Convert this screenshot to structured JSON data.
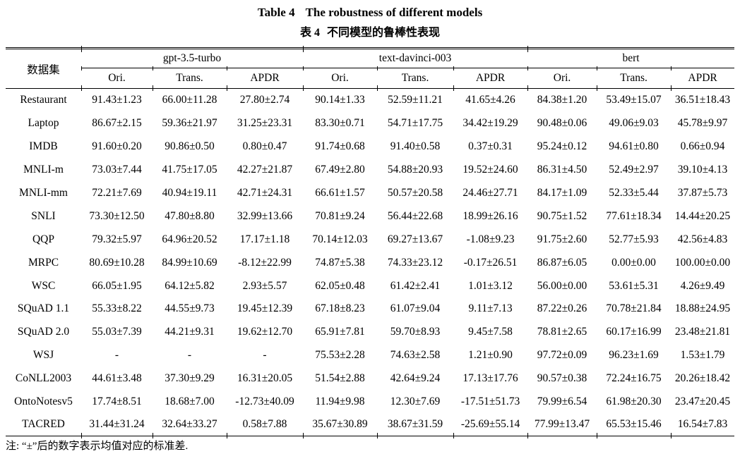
{
  "titles": {
    "en_label": "Table 4",
    "en_text": "The robustness of different models",
    "zh_label": "表 4",
    "zh_text": "不同模型的鲁棒性表现"
  },
  "colors": {
    "text": "#000000",
    "background": "#ffffff",
    "rule": "#000000"
  },
  "table": {
    "dataset_header": "数据集",
    "groups": [
      {
        "name": "gpt-3.5-turbo",
        "cols": [
          "Ori.",
          "Trans.",
          "APDR"
        ]
      },
      {
        "name": "text-davinci-003",
        "cols": [
          "Ori.",
          "Trans.",
          "APDR"
        ]
      },
      {
        "name": "bert",
        "cols": [
          "Ori.",
          "Trans.",
          "APDR"
        ]
      }
    ],
    "rows": [
      {
        "dataset": "Restaurant",
        "values": [
          "91.43±1.23",
          "66.00±11.28",
          "27.80±2.74",
          "90.14±1.33",
          "52.59±11.21",
          "41.65±4.26",
          "84.38±1.20",
          "53.49±15.07",
          "36.51±18.43"
        ]
      },
      {
        "dataset": "Laptop",
        "values": [
          "86.67±2.15",
          "59.36±21.97",
          "31.25±23.31",
          "83.30±0.71",
          "54.71±17.75",
          "34.42±19.29",
          "90.48±0.06",
          "49.06±9.03",
          "45.78±9.97"
        ]
      },
      {
        "dataset": "IMDB",
        "values": [
          "91.60±0.20",
          "90.86±0.50",
          "0.80±0.47",
          "91.74±0.68",
          "91.40±0.58",
          "0.37±0.31",
          "95.24±0.12",
          "94.61±0.80",
          "0.66±0.94"
        ]
      },
      {
        "dataset": "MNLI-m",
        "values": [
          "73.03±7.44",
          "41.75±17.05",
          "42.27±21.87",
          "67.49±2.80",
          "54.88±20.93",
          "19.52±24.60",
          "86.31±4.50",
          "52.49±2.97",
          "39.10±4.13"
        ]
      },
      {
        "dataset": "MNLI-mm",
        "values": [
          "72.21±7.69",
          "40.94±19.11",
          "42.71±24.31",
          "66.61±1.57",
          "50.57±20.58",
          "24.46±27.71",
          "84.17±1.09",
          "52.33±5.44",
          "37.87±5.73"
        ]
      },
      {
        "dataset": "SNLI",
        "values": [
          "73.30±12.50",
          "47.80±8.80",
          "32.99±13.66",
          "70.81±9.24",
          "56.44±22.68",
          "18.99±26.16",
          "90.75±1.52",
          "77.61±18.34",
          "14.44±20.25"
        ]
      },
      {
        "dataset": "QQP",
        "values": [
          "79.32±5.97",
          "64.96±20.52",
          "17.17±1.18",
          "70.14±12.03",
          "69.27±13.67",
          "-1.08±9.23",
          "91.75±2.60",
          "52.77±5.93",
          "42.56±4.83"
        ]
      },
      {
        "dataset": "MRPC",
        "values": [
          "80.69±10.28",
          "84.99±10.69",
          "-8.12±22.99",
          "74.87±5.38",
          "74.33±23.12",
          "-0.17±26.51",
          "86.87±6.05",
          "0.00±0.00",
          "100.00±0.00"
        ]
      },
      {
        "dataset": "WSC",
        "values": [
          "66.05±1.95",
          "64.12±5.82",
          "2.93±5.57",
          "62.05±0.48",
          "61.42±2.41",
          "1.01±3.12",
          "56.00±0.00",
          "53.61±5.31",
          "4.26±9.49"
        ]
      },
      {
        "dataset": "SQuAD 1.1",
        "values": [
          "55.33±8.22",
          "44.55±9.73",
          "19.45±12.39",
          "67.18±8.23",
          "61.07±9.04",
          "9.11±7.13",
          "87.22±0.26",
          "70.78±21.84",
          "18.88±24.95"
        ]
      },
      {
        "dataset": "SQuAD 2.0",
        "values": [
          "55.03±7.39",
          "44.21±9.31",
          "19.62±12.70",
          "65.91±7.81",
          "59.70±8.93",
          "9.45±7.58",
          "78.81±2.65",
          "60.17±16.99",
          "23.48±21.81"
        ]
      },
      {
        "dataset": "WSJ",
        "values": [
          "-",
          "-",
          "-",
          "75.53±2.28",
          "74.63±2.58",
          "1.21±0.90",
          "97.72±0.09",
          "96.23±1.69",
          "1.53±1.79"
        ]
      },
      {
        "dataset": "CoNLL2003",
        "values": [
          "44.61±3.48",
          "37.30±9.29",
          "16.31±20.05",
          "51.54±2.88",
          "42.64±9.24",
          "17.13±17.76",
          "90.57±0.38",
          "72.24±16.75",
          "20.26±18.42"
        ]
      },
      {
        "dataset": "OntoNotesv5",
        "values": [
          "17.74±8.51",
          "18.68±7.00",
          "-12.73±40.09",
          "11.94±9.98",
          "12.30±7.69",
          "-17.51±51.73",
          "79.99±6.54",
          "61.98±20.30",
          "23.47±20.45"
        ]
      },
      {
        "dataset": "TACRED",
        "values": [
          "31.44±31.24",
          "32.64±33.27",
          "0.58±7.88",
          "35.67±30.89",
          "38.67±31.59",
          "-25.69±55.14",
          "77.99±13.47",
          "65.53±15.46",
          "16.54±7.83"
        ]
      }
    ]
  },
  "footnote": "注: “±”后的数字表示均值对应的标准差."
}
